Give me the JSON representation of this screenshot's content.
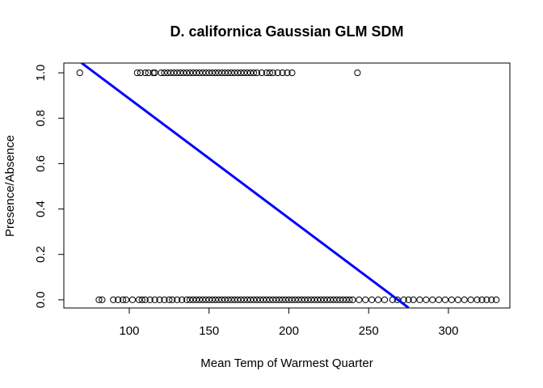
{
  "chart_data": {
    "type": "scatter",
    "title": "D. californica Gaussian GLM SDM",
    "x_label": "Mean Temp of Warmest Quarter",
    "y_label": "Presence/Absence",
    "xlim": [
      59,
      338.5
    ],
    "ylim": [
      -0.036,
      1.043
    ],
    "xticks": [
      100,
      150,
      200,
      250,
      300
    ],
    "yticks": [
      {
        "value": 0,
        "label": "0.0"
      },
      {
        "value": 0.2,
        "label": "0.2"
      },
      {
        "value": 0.4,
        "label": "0.4"
      },
      {
        "value": 0.6,
        "label": "0.6"
      },
      {
        "value": 0.8,
        "label": "0.8"
      },
      {
        "value": 1,
        "label": "1.0"
      }
    ],
    "point_color": "#000000",
    "x": [
      69,
      105,
      107,
      110,
      112,
      115,
      116,
      120,
      122,
      124,
      126,
      128,
      130,
      132,
      134,
      136,
      138,
      140,
      142,
      144,
      146,
      148,
      150,
      152,
      154,
      156,
      158,
      160,
      162,
      164,
      166,
      168,
      170,
      172,
      174,
      176,
      178,
      180,
      183,
      186,
      188,
      190,
      193,
      196,
      199,
      202,
      243,
      81,
      83,
      90,
      93,
      96,
      98,
      102,
      106,
      108,
      110,
      113,
      116,
      119,
      122,
      125,
      127,
      130,
      133,
      136,
      138,
      140,
      142,
      144,
      146,
      148,
      150,
      152,
      154,
      156,
      158,
      160,
      162,
      164,
      166,
      168,
      170,
      172,
      174,
      176,
      178,
      180,
      182,
      184,
      186,
      188,
      190,
      192,
      194,
      196,
      198,
      200,
      202,
      204,
      206,
      208,
      210,
      212,
      214,
      216,
      218,
      220,
      222,
      224,
      226,
      228,
      230,
      232,
      234,
      236,
      238,
      240,
      244,
      248,
      252,
      256,
      260,
      265,
      268,
      272,
      275,
      278,
      282,
      286,
      290,
      294,
      298,
      302,
      306,
      310,
      314,
      318,
      321,
      324,
      327,
      330
    ],
    "values": [
      1,
      1,
      1,
      1,
      1,
      1,
      1,
      1,
      1,
      1,
      1,
      1,
      1,
      1,
      1,
      1,
      1,
      1,
      1,
      1,
      1,
      1,
      1,
      1,
      1,
      1,
      1,
      1,
      1,
      1,
      1,
      1,
      1,
      1,
      1,
      1,
      1,
      1,
      1,
      1,
      1,
      1,
      1,
      1,
      1,
      1,
      1,
      0,
      0,
      0,
      0,
      0,
      0,
      0,
      0,
      0,
      0,
      0,
      0,
      0,
      0,
      0,
      0,
      0,
      0,
      0,
      0,
      0,
      0,
      0,
      0,
      0,
      0,
      0,
      0,
      0,
      0,
      0,
      0,
      0,
      0,
      0,
      0,
      0,
      0,
      0,
      0,
      0,
      0,
      0,
      0,
      0,
      0,
      0,
      0,
      0,
      0,
      0,
      0,
      0,
      0,
      0,
      0,
      0,
      0,
      0,
      0,
      0,
      0,
      0,
      0,
      0,
      0,
      0,
      0,
      0,
      0,
      0,
      0,
      0,
      0,
      0,
      0,
      0,
      0,
      0,
      0,
      0,
      0,
      0,
      0,
      0,
      0,
      0,
      0,
      0,
      0,
      0,
      0,
      0,
      0,
      0
    ],
    "fit_line": {
      "x": [
        70,
        275
      ],
      "values": [
        1.044,
        -0.035
      ],
      "color": "#0000ff"
    }
  }
}
